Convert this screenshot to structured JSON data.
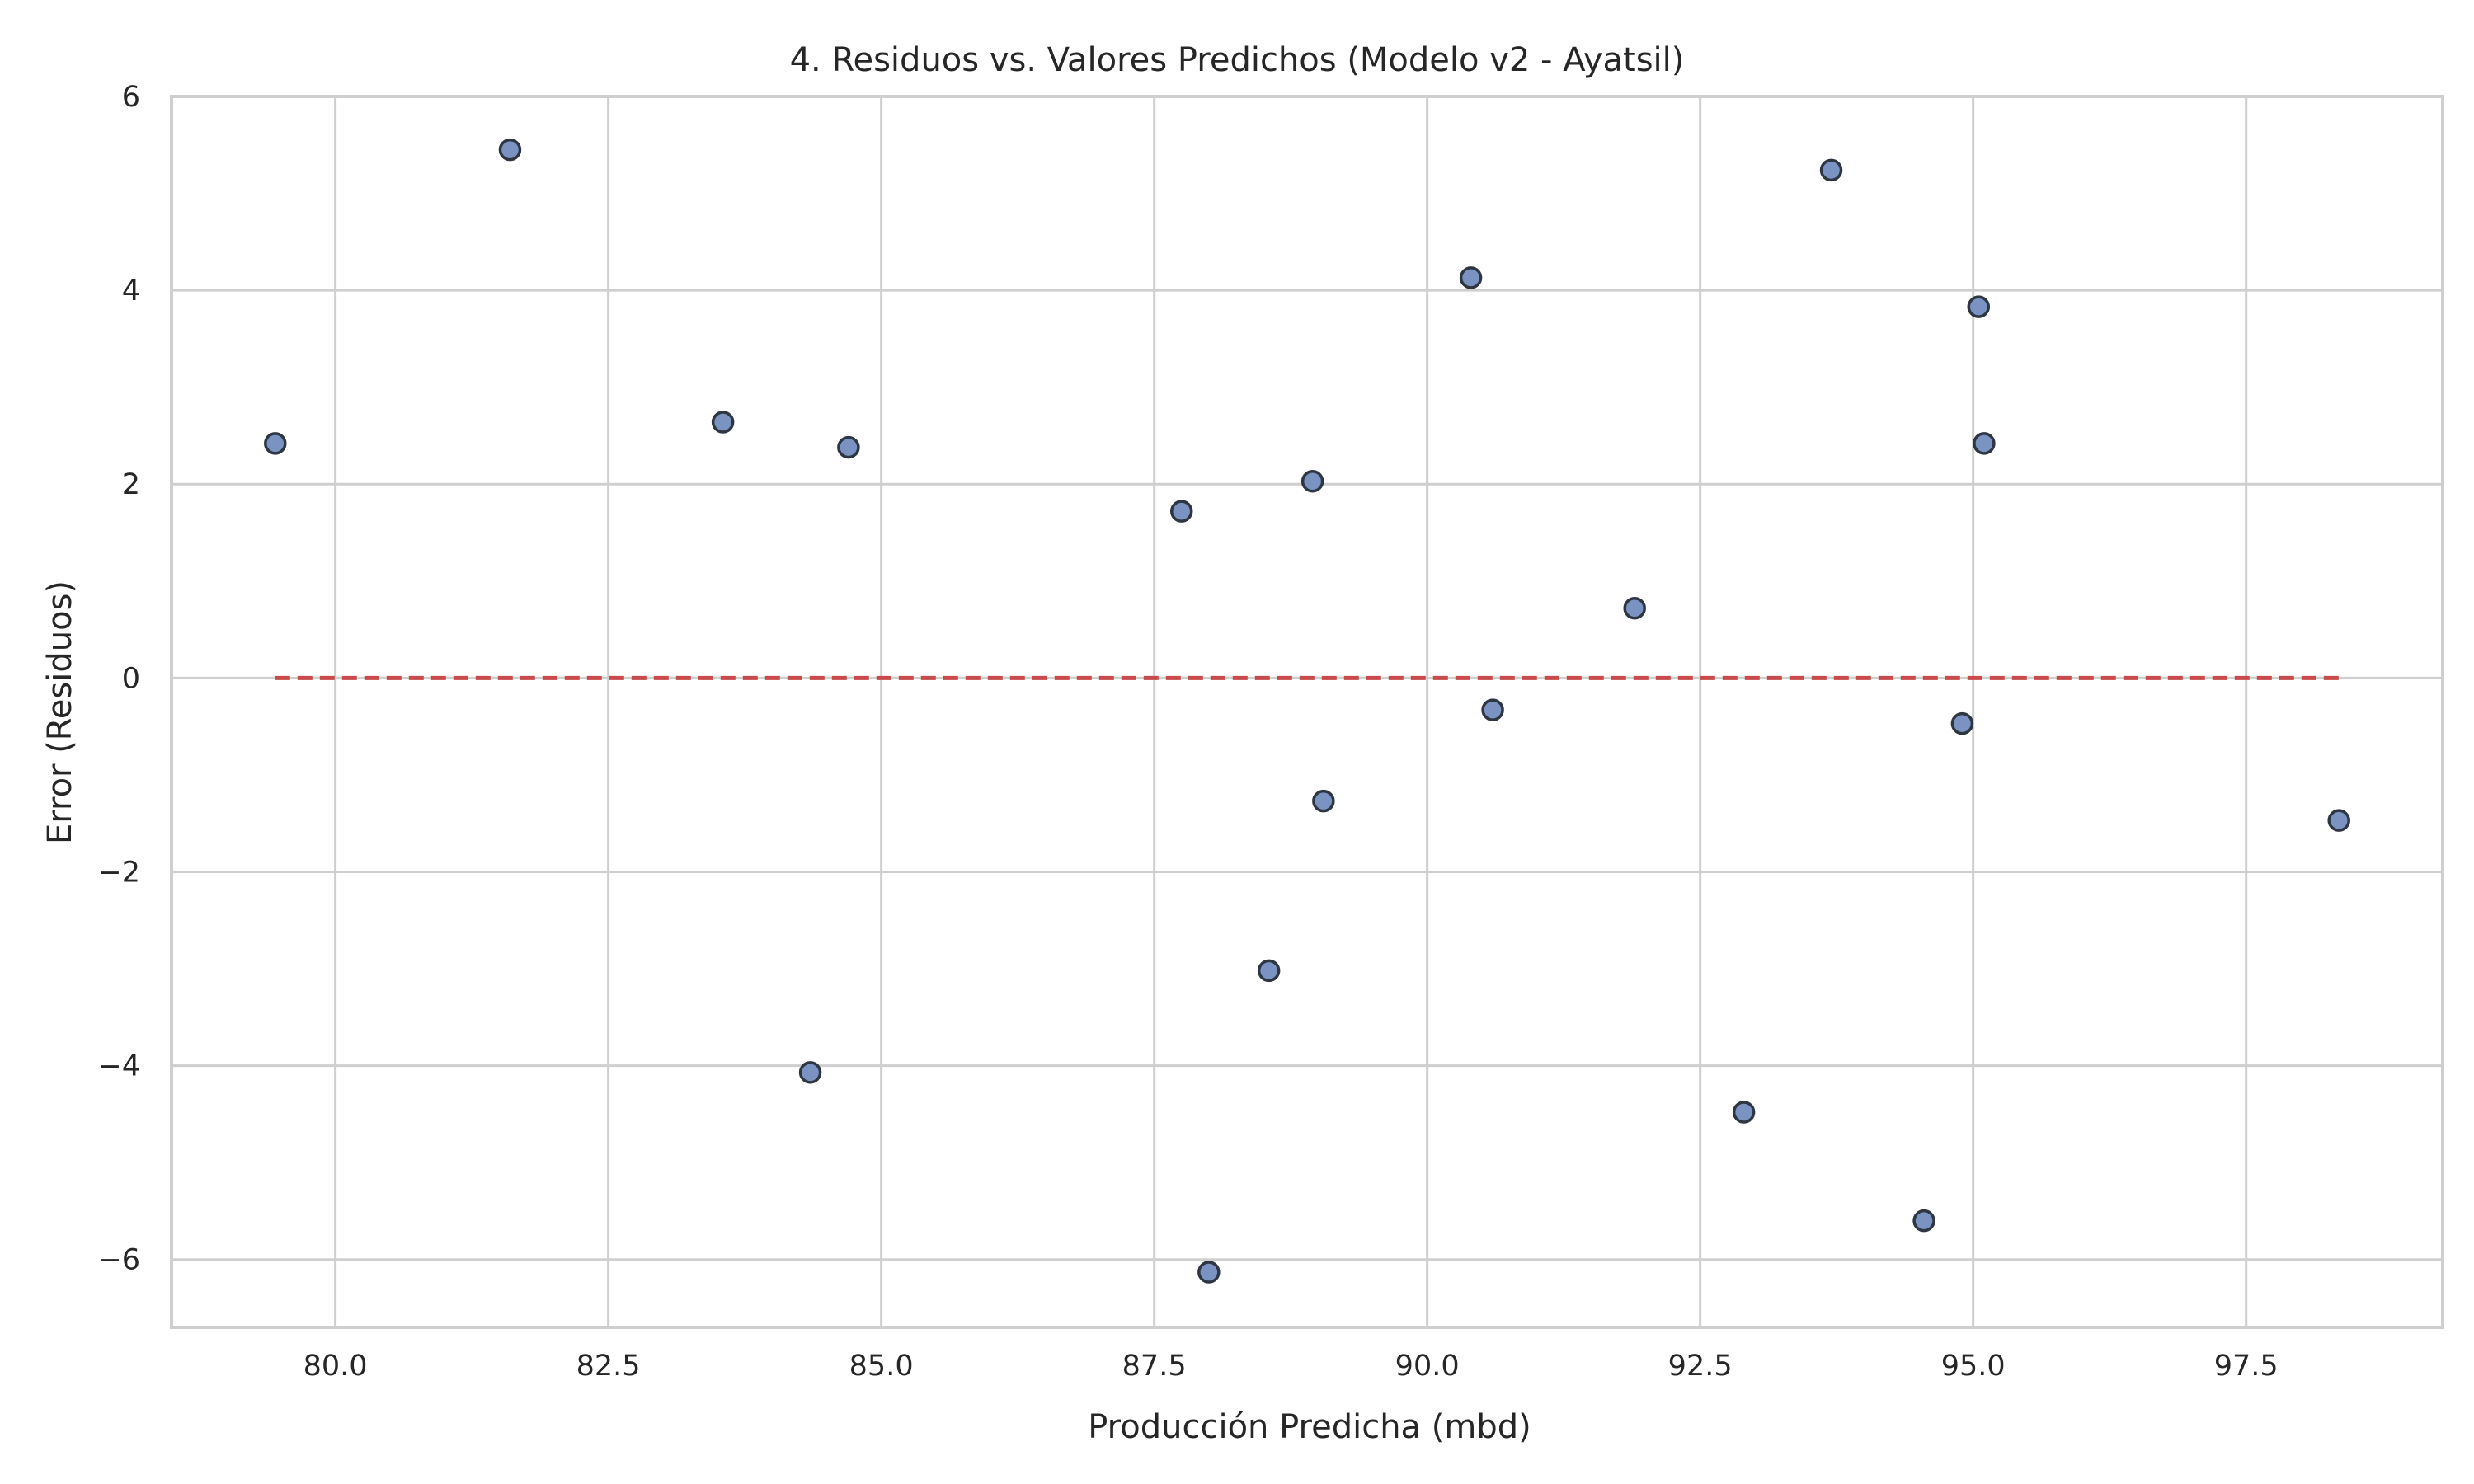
{
  "chart_data": {
    "type": "scatter",
    "title": "4. Residuos vs. Valores Predichos (Modelo v2 - Ayatsil)",
    "xlabel": "Producción Predicha (mbd)",
    "ylabel": "Error (Residuos)",
    "xlim": [
      78.5,
      99.3
    ],
    "ylim": [
      -6.7,
      6.0
    ],
    "xticks": [
      80.0,
      82.5,
      85.0,
      87.5,
      90.0,
      92.5,
      95.0,
      97.5
    ],
    "xtick_labels": [
      "80.0",
      "82.5",
      "85.0",
      "87.5",
      "90.0",
      "92.5",
      "95.0",
      "97.5"
    ],
    "yticks": [
      6,
      4,
      2,
      0,
      -2,
      -4,
      -6
    ],
    "ytick_labels": [
      "6",
      "4",
      "2",
      "0",
      "−2",
      "−4",
      "−6"
    ],
    "grid": true,
    "legend": "none",
    "colors": {
      "marker_fill": "#7b93c2",
      "marker_edge": "#2e3642",
      "reference_line": "#c84a4a",
      "grid": "#cfcfcf",
      "spine": "#cfcfcf"
    },
    "reference_line": {
      "style": "dashed",
      "y": 0,
      "x_start": 79.45,
      "x_end": 98.35
    },
    "points": [
      {
        "x": 79.45,
        "y": 2.42
      },
      {
        "x": 81.6,
        "y": 5.45
      },
      {
        "x": 83.55,
        "y": 2.64
      },
      {
        "x": 84.35,
        "y": -4.07
      },
      {
        "x": 84.7,
        "y": 2.38
      },
      {
        "x": 87.75,
        "y": 1.72
      },
      {
        "x": 88.0,
        "y": -6.13
      },
      {
        "x": 88.55,
        "y": -3.02
      },
      {
        "x": 88.95,
        "y": 2.03
      },
      {
        "x": 89.05,
        "y": -1.27
      },
      {
        "x": 90.4,
        "y": 4.13
      },
      {
        "x": 90.6,
        "y": -0.33
      },
      {
        "x": 91.9,
        "y": 0.72
      },
      {
        "x": 92.9,
        "y": -4.48
      },
      {
        "x": 93.7,
        "y": 5.24
      },
      {
        "x": 94.55,
        "y": -5.6
      },
      {
        "x": 94.9,
        "y": -0.47
      },
      {
        "x": 95.05,
        "y": 3.83
      },
      {
        "x": 95.1,
        "y": 2.42
      },
      {
        "x": 98.35,
        "y": -1.47
      }
    ]
  }
}
